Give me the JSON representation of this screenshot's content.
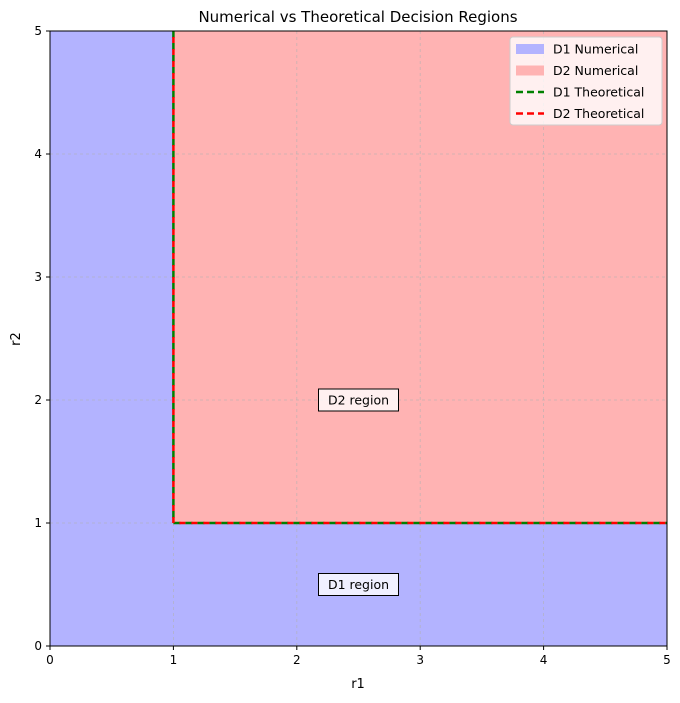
{
  "chart_data": {
    "type": "area",
    "title": "Numerical vs Theoretical Decision Regions",
    "xlabel": "r1",
    "ylabel": "r2",
    "xlim": [
      0,
      5
    ],
    "ylim": [
      0,
      5
    ],
    "xticks": [
      "0",
      "1",
      "2",
      "3",
      "4",
      "5"
    ],
    "yticks": [
      "0",
      "1",
      "2",
      "3",
      "4",
      "5"
    ],
    "grid": true,
    "legend_position": "top-right",
    "regions": [
      {
        "name": "D1 Numerical",
        "color": "#b3b3ff",
        "rule": "r1 < 1 or r2 < 1"
      },
      {
        "name": "D2 Numerical",
        "color": "#ffb3b3",
        "rule": "r1 >= 1 and r2 >= 1"
      }
    ],
    "series": [
      {
        "name": "D1 Theoretical",
        "color": "#008000",
        "style": "dashed",
        "x": [
          1,
          1,
          5
        ],
        "y": [
          5,
          1,
          1
        ]
      },
      {
        "name": "D2 Theoretical",
        "color": "#ff0000",
        "style": "dashed",
        "x": [
          1,
          1,
          5
        ],
        "y": [
          5,
          1,
          1
        ]
      }
    ],
    "annotations": [
      {
        "text": "D2 region",
        "x": 2.5,
        "y": 2.0
      },
      {
        "text": "D1 region",
        "x": 2.5,
        "y": 0.5
      }
    ]
  }
}
